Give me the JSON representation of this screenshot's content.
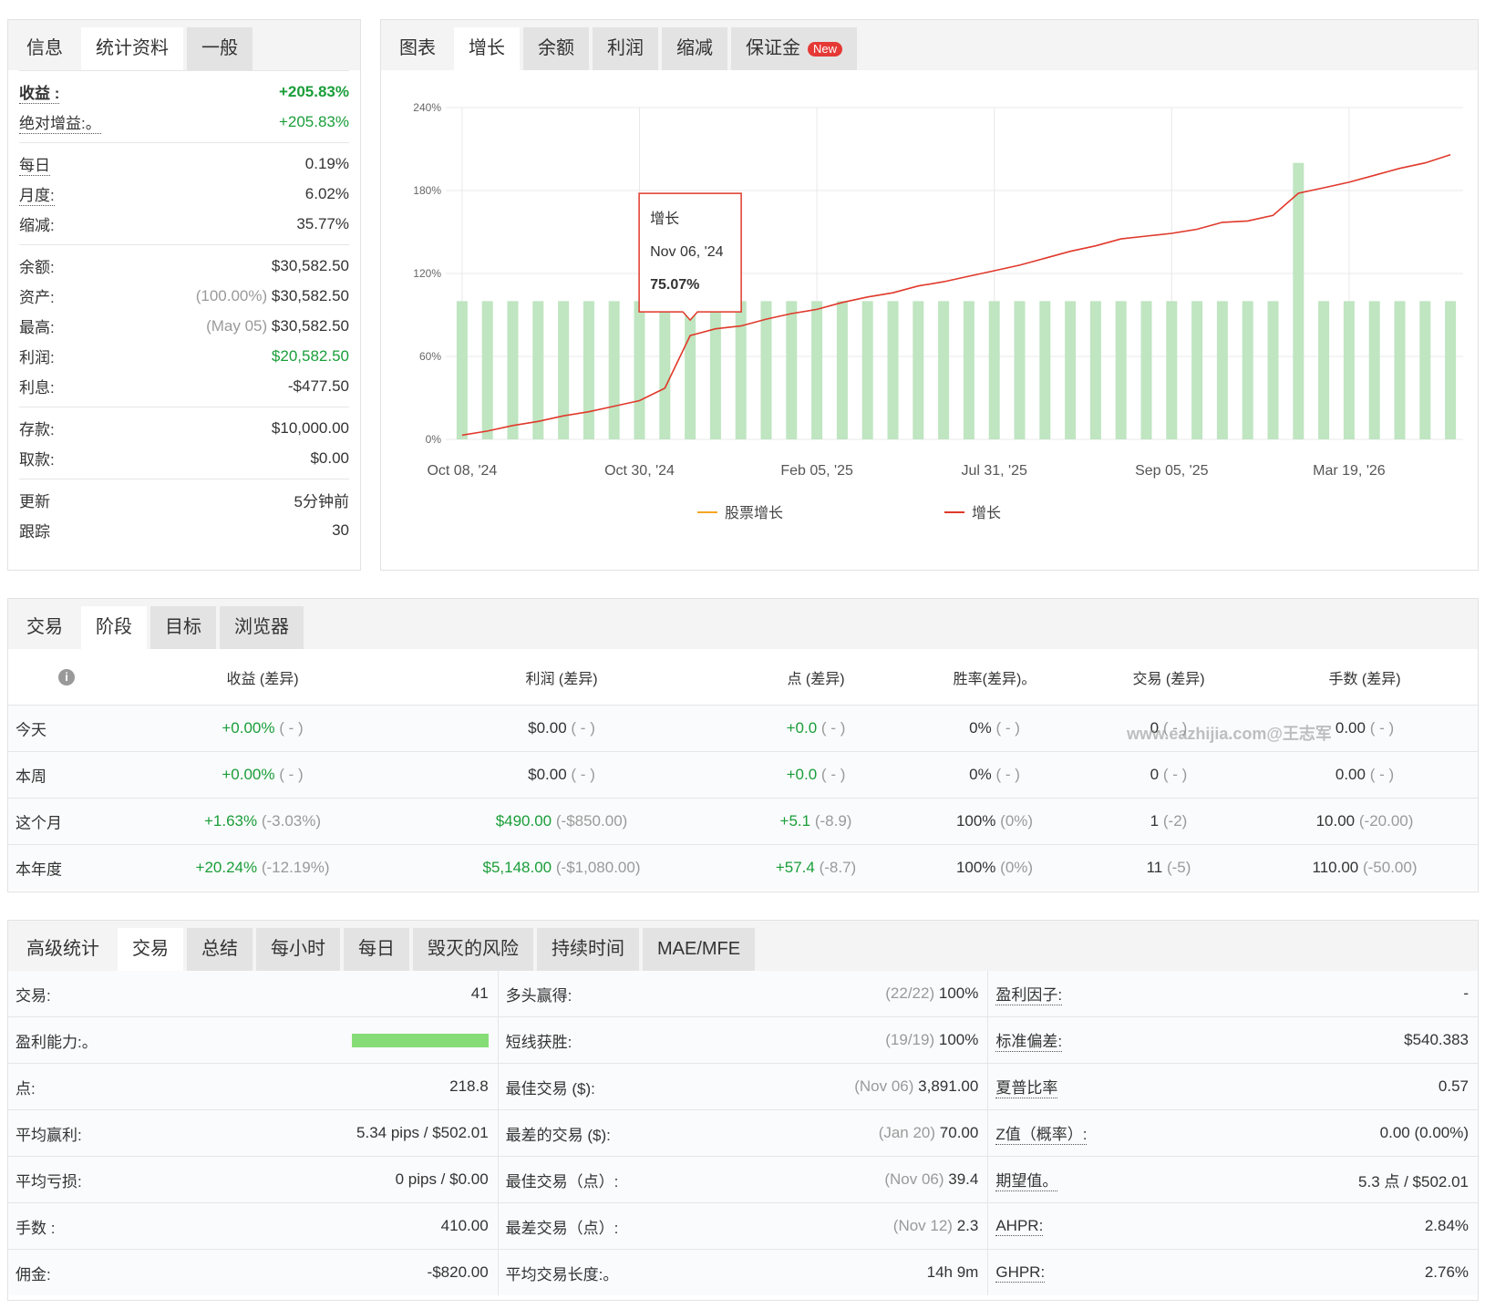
{
  "info": {
    "tabs": {
      "items": [
        "信息",
        "统计资料",
        "一般"
      ],
      "active": 1
    },
    "groups": [
      [
        {
          "label": "收益 :",
          "value": "+205.83%",
          "tone": "pos",
          "bold": true,
          "underline": true
        },
        {
          "label": "绝对增益:。",
          "value": "+205.83%",
          "tone": "pos",
          "underline": true
        }
      ],
      [
        {
          "label": "每日",
          "value": "0.19%",
          "underline": true
        },
        {
          "label": "月度:",
          "value": "6.02%",
          "underline": true
        },
        {
          "label": "缩减:",
          "value": "35.77%"
        }
      ],
      [
        {
          "label": "余额:",
          "value": "$30,582.50"
        },
        {
          "label": "资产:",
          "note": "(100.00%)",
          "value": "$30,582.50"
        },
        {
          "label": "最高:",
          "note": "(May 05)",
          "value": "$30,582.50"
        },
        {
          "label": "利润:",
          "value": "$20,582.50",
          "tone": "pos"
        },
        {
          "label": "利息:",
          "value": "-$477.50"
        }
      ],
      [
        {
          "label": "存款:",
          "value": "$10,000.00"
        },
        {
          "label": "取款:",
          "value": "$0.00"
        }
      ],
      [
        {
          "label": "更新",
          "value": "5分钟前"
        },
        {
          "label": "跟踪",
          "value": "30"
        }
      ]
    ]
  },
  "chart_panel": {
    "tabs": {
      "items": [
        "图表",
        "增长",
        "余额",
        "利润",
        "缩减",
        "保证金"
      ],
      "active": 1,
      "badge": "New"
    }
  },
  "chart_data": {
    "type": "line",
    "categories": [
      "Oct 08, '24",
      null,
      null,
      null,
      null,
      null,
      null,
      "Oct 30, '24",
      null,
      null,
      null,
      null,
      null,
      null,
      "Feb 05, '25",
      null,
      null,
      null,
      null,
      null,
      null,
      "Jul 31, '25",
      null,
      null,
      null,
      null,
      null,
      null,
      "Sep 05, '25",
      null,
      null,
      null,
      null,
      null,
      null,
      "Mar 19, '26",
      null,
      null,
      null,
      null
    ],
    "bars": {
      "color": "#bfe5c1",
      "values": [
        100,
        100,
        100,
        100,
        100,
        100,
        100,
        100,
        100,
        100,
        100,
        100,
        100,
        100,
        100,
        100,
        100,
        100,
        100,
        100,
        100,
        100,
        100,
        100,
        100,
        100,
        100,
        100,
        100,
        100,
        100,
        100,
        100,
        200,
        100,
        100,
        100,
        100,
        100,
        100
      ]
    },
    "series": [
      {
        "name": "股票增长",
        "color": "#f5a623",
        "values": [
          null,
          null,
          null,
          null,
          null,
          null,
          null,
          null,
          null,
          null,
          null,
          null,
          null,
          null,
          null,
          null,
          null,
          null,
          null,
          null,
          null,
          null,
          null,
          null,
          null,
          null,
          null,
          null,
          null,
          null,
          null,
          null,
          null,
          null,
          null,
          null,
          null,
          null,
          null,
          null
        ]
      },
      {
        "name": "增长",
        "color": "#e0392b",
        "values": [
          3,
          6,
          10,
          13,
          17,
          20,
          24,
          28,
          37,
          75.07,
          80,
          82,
          87,
          91,
          94,
          99,
          103,
          106,
          111,
          114,
          118,
          122,
          126,
          131,
          136,
          140,
          145,
          147,
          149,
          152,
          157,
          158,
          162,
          178,
          182,
          186,
          191,
          196,
          200,
          205.83
        ]
      }
    ],
    "ylim": [
      0,
      240
    ],
    "yticks": [
      {
        "value": 0,
        "label": "0%"
      },
      {
        "value": 60,
        "label": "60%"
      },
      {
        "value": 120,
        "label": "120%"
      },
      {
        "value": 180,
        "label": "180%"
      },
      {
        "value": 240,
        "label": "240%"
      }
    ],
    "grid": true,
    "tooltip": {
      "date": "Nov 06, '24",
      "value_label": "75.07%"
    }
  },
  "period": {
    "tabs": {
      "items": [
        "交易",
        "阶段",
        "目标",
        "浏览器"
      ],
      "active": 1
    },
    "columns": [
      "收益 (差异)",
      "利润 (差异)",
      "点 (差异)",
      "胜率(差异)。",
      "交易 (差异)",
      "手数 (差异)"
    ],
    "rows": [
      {
        "label": "今天",
        "cells": [
          {
            "value": "+0.00%",
            "delta": "( - )",
            "tone": "pos"
          },
          {
            "value": "$0.00",
            "delta": "( - )"
          },
          {
            "value": "+0.0",
            "delta": "( - )",
            "tone": "pos"
          },
          {
            "value": "0%",
            "delta": "( - )"
          },
          {
            "value": "0",
            "delta": "( - )"
          },
          {
            "value": "0.00",
            "delta": "( - )"
          }
        ]
      },
      {
        "label": "本周",
        "cells": [
          {
            "value": "+0.00%",
            "delta": "( - )",
            "tone": "pos"
          },
          {
            "value": "$0.00",
            "delta": "( - )"
          },
          {
            "value": "+0.0",
            "delta": "( - )",
            "tone": "pos"
          },
          {
            "value": "0%",
            "delta": "( - )"
          },
          {
            "value": "0",
            "delta": "( - )"
          },
          {
            "value": "0.00",
            "delta": "( - )"
          }
        ]
      },
      {
        "label": "这个月",
        "cells": [
          {
            "value": "+1.63%",
            "delta": "(-3.03%)",
            "tone": "pos"
          },
          {
            "value": "$490.00",
            "delta": "(-$850.00)",
            "tone": "pos"
          },
          {
            "value": "+5.1",
            "delta": "(-8.9)",
            "tone": "pos"
          },
          {
            "value": "100%",
            "delta": "(0%)"
          },
          {
            "value": "1",
            "delta": "(-2)"
          },
          {
            "value": "10.00",
            "delta": "(-20.00)"
          }
        ]
      },
      {
        "label": "本年度",
        "cells": [
          {
            "value": "+20.24%",
            "delta": "(-12.19%)",
            "tone": "pos"
          },
          {
            "value": "$5,148.00",
            "delta": "(-$1,080.00)",
            "tone": "pos"
          },
          {
            "value": "+57.4",
            "delta": "(-8.7)",
            "tone": "pos"
          },
          {
            "value": "100%",
            "delta": "(0%)"
          },
          {
            "value": "11",
            "delta": "(-5)"
          },
          {
            "value": "110.00",
            "delta": "(-50.00)"
          }
        ]
      }
    ],
    "watermark": "www.eazhijia.com@王志军"
  },
  "advanced": {
    "tabs": {
      "items": [
        "高级统计",
        "交易",
        "总结",
        "每小时",
        "每日",
        "毁灭的风险",
        "持续时间",
        "MAE/MFE"
      ],
      "active": 1
    },
    "rows": [
      [
        {
          "label": "交易:",
          "value": "41"
        },
        {
          "label": "多头赢得:",
          "note": "(22/22)",
          "value": "100%"
        },
        {
          "label": "盈利因子:",
          "value": "-",
          "underline": true
        }
      ],
      [
        {
          "label": "盈利能力:。"
        },
        {
          "label": "短线获胜:",
          "note": "(19/19)",
          "value": "100%"
        },
        {
          "label": "标准偏差:",
          "value": "$540.383",
          "underline": true
        }
      ],
      [
        {
          "label": "点:",
          "value": "218.8"
        },
        {
          "label": "最佳交易 ($):",
          "note": "(Nov 06)",
          "value": "3,891.00"
        },
        {
          "label": "夏普比率",
          "value": "0.57",
          "underline": true
        }
      ],
      [
        {
          "label": "平均赢利:",
          "value": "5.34 pips / $502.01"
        },
        {
          "label": "最差的交易 ($):",
          "note": "(Jan 20)",
          "value": "70.00"
        },
        {
          "label": "Z值（概率）:",
          "value": "0.00 (0.00%)",
          "underline": true
        }
      ],
      [
        {
          "label": "平均亏损:",
          "value": "0 pips / $0.00"
        },
        {
          "label": "最佳交易（点）:",
          "note": "(Nov 06)",
          "value": "39.4"
        },
        {
          "label": "期望值。",
          "value": "5.3 点 / $502.01",
          "underline": true
        }
      ],
      [
        {
          "label": "手数 :",
          "value": "410.00"
        },
        {
          "label": "最差交易（点）:",
          "note": "(Nov 12)",
          "value": "2.3"
        },
        {
          "label": "AHPR:",
          "value": "2.84%",
          "underline": true
        }
      ],
      [
        {
          "label": "佣金:",
          "value": "-$820.00"
        },
        {
          "label": "平均交易长度:。",
          "value": "14h 9m"
        },
        {
          "label": "GHPR:",
          "value": "2.76%",
          "underline": true
        }
      ]
    ]
  }
}
